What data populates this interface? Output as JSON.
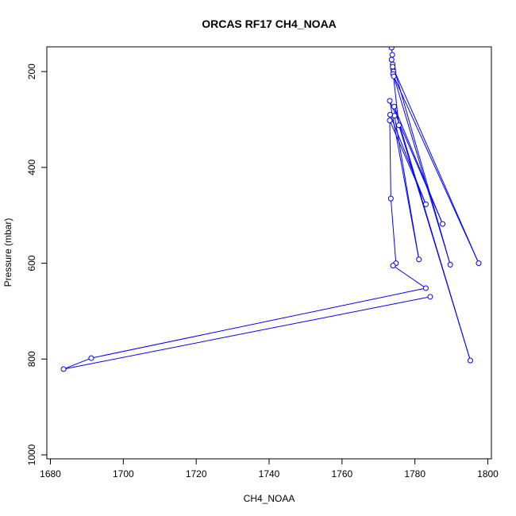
{
  "chart_data": {
    "type": "scatter",
    "title": "ORCAS RF17 CH4_NOAA",
    "xlabel": "CH4_NOAA",
    "ylabel": "Pressure (mbar)",
    "xlim": [
      1680,
      1800
    ],
    "ylim": [
      1000,
      150
    ],
    "y_reversed": true,
    "xticks": [
      1680,
      1700,
      1720,
      1740,
      1760,
      1780,
      1800
    ],
    "yticks": [
      200,
      400,
      600,
      800,
      1000
    ],
    "grid": false,
    "legend": "none",
    "series_color": "#0000ff",
    "series": [
      {
        "points": [
          {
            "x": 1773.6,
            "y": 150
          },
          {
            "x": 1773.8,
            "y": 165
          },
          {
            "x": 1773.9,
            "y": 185
          },
          {
            "x": 1774.0,
            "y": 195
          },
          {
            "x": 1774.1,
            "y": 200
          },
          {
            "x": 1774.0,
            "y": 205
          },
          {
            "x": 1773.9,
            "y": 190
          },
          {
            "x": 1797.5,
            "y": 600
          },
          {
            "x": 1774.2,
            "y": 210
          },
          {
            "x": 1789.7,
            "y": 603
          },
          {
            "x": 1773.6,
            "y": 175
          },
          {
            "x": 1775.6,
            "y": 312
          },
          {
            "x": 1795.2,
            "y": 803
          },
          {
            "x": 1774.3,
            "y": 273
          },
          {
            "x": 1787.6,
            "y": 518
          },
          {
            "x": 1773.1,
            "y": 261
          },
          {
            "x": 1781.1,
            "y": 592
          },
          {
            "x": 1774.4,
            "y": 292
          },
          {
            "x": 1773.2,
            "y": 290
          },
          {
            "x": 1783.0,
            "y": 477
          },
          {
            "x": 1773.1,
            "y": 302
          },
          {
            "x": 1773.4,
            "y": 465
          },
          {
            "x": 1774.8,
            "y": 600
          },
          {
            "x": 1774.0,
            "y": 605
          },
          {
            "x": 1783.0,
            "y": 652
          },
          {
            "x": 1691.2,
            "y": 798
          },
          {
            "x": 1683.6,
            "y": 821
          },
          {
            "x": 1784.2,
            "y": 670
          }
        ]
      }
    ]
  }
}
